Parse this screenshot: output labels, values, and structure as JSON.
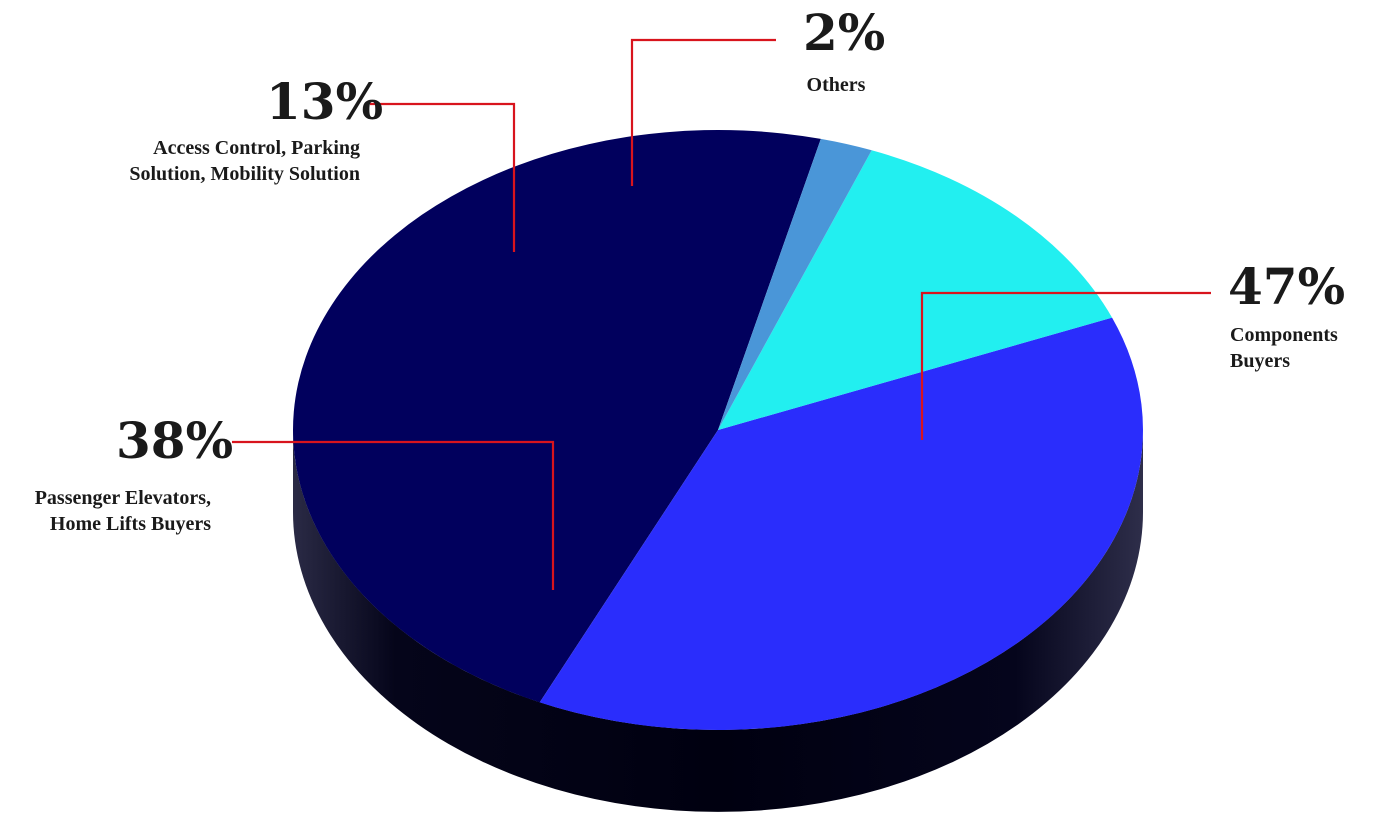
{
  "chart_data": {
    "type": "pie",
    "title": "",
    "slices": [
      {
        "label": "Components Buyers",
        "label_lines": [
          "Components",
          "Buyers"
        ],
        "value": 47,
        "value_label": "47%",
        "color": "#01005d"
      },
      {
        "label": "Passenger Elevators, Home Lifts Buyers",
        "label_lines": [
          "Passenger Elevators,",
          "Home Lifts Buyers"
        ],
        "value": 38,
        "value_label": "38%",
        "color": "#2a2dfc"
      },
      {
        "label": "Access Control, Parking Solution, Mobility Solution",
        "label_lines": [
          "Access Control, Parking",
          "Solution, Mobility Solution"
        ],
        "value": 13,
        "value_label": "13%",
        "color": "#22eff0"
      },
      {
        "label": "Others",
        "label_lines": [
          "Others"
        ],
        "value": 2,
        "value_label": "2%",
        "color": "#4a96d8"
      }
    ],
    "style": "3d",
    "leader_line_color": "#d8141d"
  }
}
